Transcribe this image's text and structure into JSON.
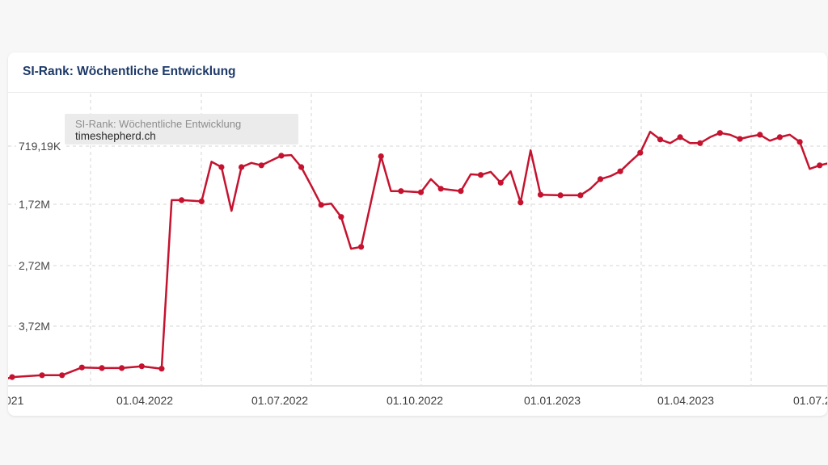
{
  "card": {
    "title": "SI-Rank: Wöchentliche Entwicklung"
  },
  "tooltip": {
    "title": "SI-Rank: Wöchentliche Entwicklung",
    "domain": "timeshepherd.ch"
  },
  "chart_data": {
    "type": "line",
    "title": "SI-Rank: Wöchentliche Entwicklung",
    "x_unit": "weeks (approx., dates on axis)",
    "y_unit": "SI-Rank (site rank, inverted axis: better rank on top)",
    "grid": "dashed",
    "legend_position": "none",
    "y_axis": {
      "inverted": true,
      "tick_labels": [
        "719,19K",
        "1,72M",
        "2,72M",
        "3,72M"
      ],
      "tick_values_millions": [
        0.72,
        1.72,
        2.72,
        3.72
      ]
    },
    "x_axis": {
      "tick_labels": [
        "021",
        "01.04.2022",
        "01.07.2022",
        "01.10.2022",
        "01.01.2023",
        "01.04.2023",
        "01.07.2"
      ]
    },
    "series": [
      {
        "name": "timeshepherd.ch",
        "color": "#c5132f",
        "note": "points are [week_index, rank_in_millions, has_marker]",
        "points": [
          [
            -1,
            4.62,
            0
          ],
          [
            0,
            4.57,
            1
          ],
          [
            3,
            4.54,
            1
          ],
          [
            5,
            4.54,
            1
          ],
          [
            7,
            4.41,
            1
          ],
          [
            9,
            4.42,
            1
          ],
          [
            11,
            4.42,
            1
          ],
          [
            13,
            4.39,
            1
          ],
          [
            15,
            4.43,
            1
          ],
          [
            16,
            1.62,
            0
          ],
          [
            17,
            1.62,
            1
          ],
          [
            19,
            1.64,
            1
          ],
          [
            20,
            0.98,
            0
          ],
          [
            21,
            1.07,
            1
          ],
          [
            22,
            1.8,
            0
          ],
          [
            23,
            1.07,
            1
          ],
          [
            24,
            1.0,
            0
          ],
          [
            25,
            1.04,
            1
          ],
          [
            27,
            0.88,
            1
          ],
          [
            28,
            0.87,
            0
          ],
          [
            29,
            1.07,
            1
          ],
          [
            30,
            1.38,
            0
          ],
          [
            31,
            1.7,
            1
          ],
          [
            32,
            1.68,
            0
          ],
          [
            33,
            1.9,
            1
          ],
          [
            34,
            2.43,
            0
          ],
          [
            35,
            2.4,
            1
          ],
          [
            37,
            0.89,
            1
          ],
          [
            38,
            1.47,
            0
          ],
          [
            39,
            1.47,
            1
          ],
          [
            41,
            1.49,
            1
          ],
          [
            42,
            1.27,
            0
          ],
          [
            43,
            1.43,
            1
          ],
          [
            45,
            1.47,
            1
          ],
          [
            46,
            1.19,
            0
          ],
          [
            47,
            1.2,
            1
          ],
          [
            48,
            1.15,
            0
          ],
          [
            49,
            1.33,
            1
          ],
          [
            50,
            1.14,
            0
          ],
          [
            51,
            1.66,
            1
          ],
          [
            52,
            0.79,
            0
          ],
          [
            53,
            1.53,
            1
          ],
          [
            55,
            1.54,
            1
          ],
          [
            57,
            1.54,
            1
          ],
          [
            58,
            1.43,
            0
          ],
          [
            59,
            1.27,
            1
          ],
          [
            60,
            1.22,
            0
          ],
          [
            61,
            1.14,
            1
          ],
          [
            62,
            0.98,
            0
          ],
          [
            63,
            0.83,
            1
          ],
          [
            64,
            0.48,
            0
          ],
          [
            65,
            0.61,
            1
          ],
          [
            66,
            0.67,
            0
          ],
          [
            67,
            0.57,
            1
          ],
          [
            68,
            0.67,
            0
          ],
          [
            69,
            0.67,
            1
          ],
          [
            70,
            0.57,
            0
          ],
          [
            71,
            0.5,
            1
          ],
          [
            72,
            0.53,
            0
          ],
          [
            73,
            0.6,
            1
          ],
          [
            74,
            0.56,
            0
          ],
          [
            75,
            0.53,
            1
          ],
          [
            76,
            0.63,
            0
          ],
          [
            77,
            0.57,
            1
          ],
          [
            78,
            0.53,
            0
          ],
          [
            79,
            0.65,
            1
          ],
          [
            80,
            1.1,
            0
          ],
          [
            81,
            1.04,
            1
          ],
          [
            82,
            1.0,
            0
          ]
        ]
      }
    ]
  },
  "colors": {
    "accent_line": "#c5132f",
    "title_text": "#1d3968",
    "grid": "#d6d6d6",
    "page_background": "#f7f7f8",
    "card_background": "#ffffff",
    "tooltip_background": "#ebebeb"
  }
}
